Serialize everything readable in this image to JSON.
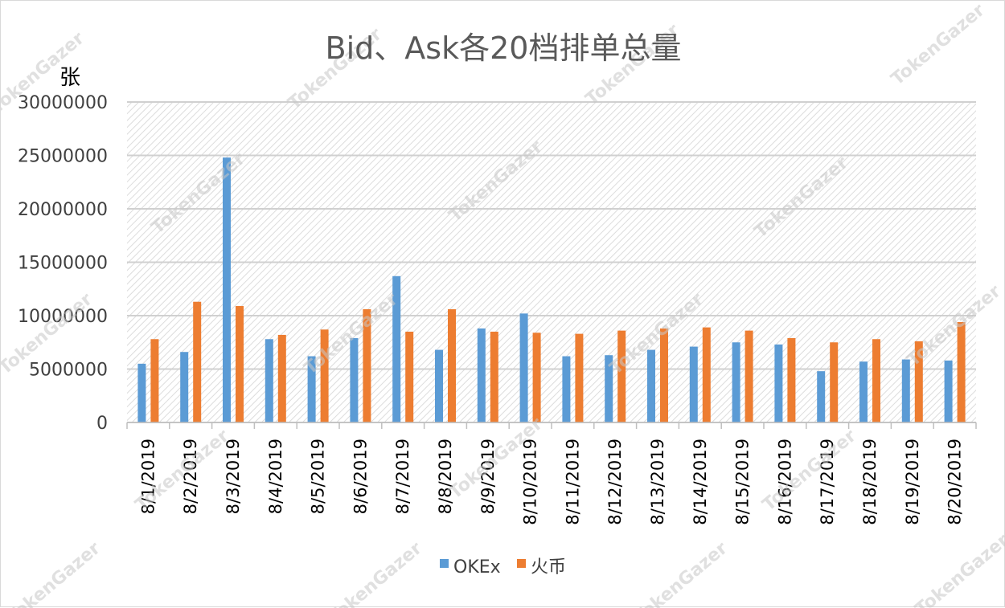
{
  "chart_data": {
    "type": "bar",
    "title": "Bid、Ask各20档排单总量",
    "ylabel": "张",
    "xlabel": "",
    "ylim": [
      0,
      30000000
    ],
    "yticks": [
      0,
      5000000,
      10000000,
      15000000,
      20000000,
      25000000,
      30000000
    ],
    "grid": true,
    "legend_position": "bottom",
    "categories": [
      "8/1/2019",
      "8/2/2019",
      "8/3/2019",
      "8/4/2019",
      "8/5/2019",
      "8/6/2019",
      "8/7/2019",
      "8/8/2019",
      "8/9/2019",
      "8/10/2019",
      "8/11/2019",
      "8/12/2019",
      "8/13/2019",
      "8/14/2019",
      "8/15/2019",
      "8/16/2019",
      "8/17/2019",
      "8/18/2019",
      "8/19/2019",
      "8/20/2019"
    ],
    "series": [
      {
        "name": "OKEx",
        "color": "#5b9bd5",
        "values": [
          5500000,
          6600000,
          24800000,
          7800000,
          6200000,
          7900000,
          13700000,
          6800000,
          8800000,
          10200000,
          6200000,
          6300000,
          6800000,
          7100000,
          7500000,
          7300000,
          4800000,
          5700000,
          5900000,
          5800000
        ]
      },
      {
        "name": "火币",
        "color": "#ed7d31",
        "values": [
          7800000,
          11300000,
          10900000,
          8200000,
          8700000,
          10600000,
          8500000,
          10600000,
          8500000,
          8400000,
          8300000,
          8600000,
          8800000,
          8900000,
          8600000,
          7900000,
          7500000,
          7800000,
          7600000,
          9400000
        ]
      }
    ]
  },
  "watermark": "TokenGazer"
}
